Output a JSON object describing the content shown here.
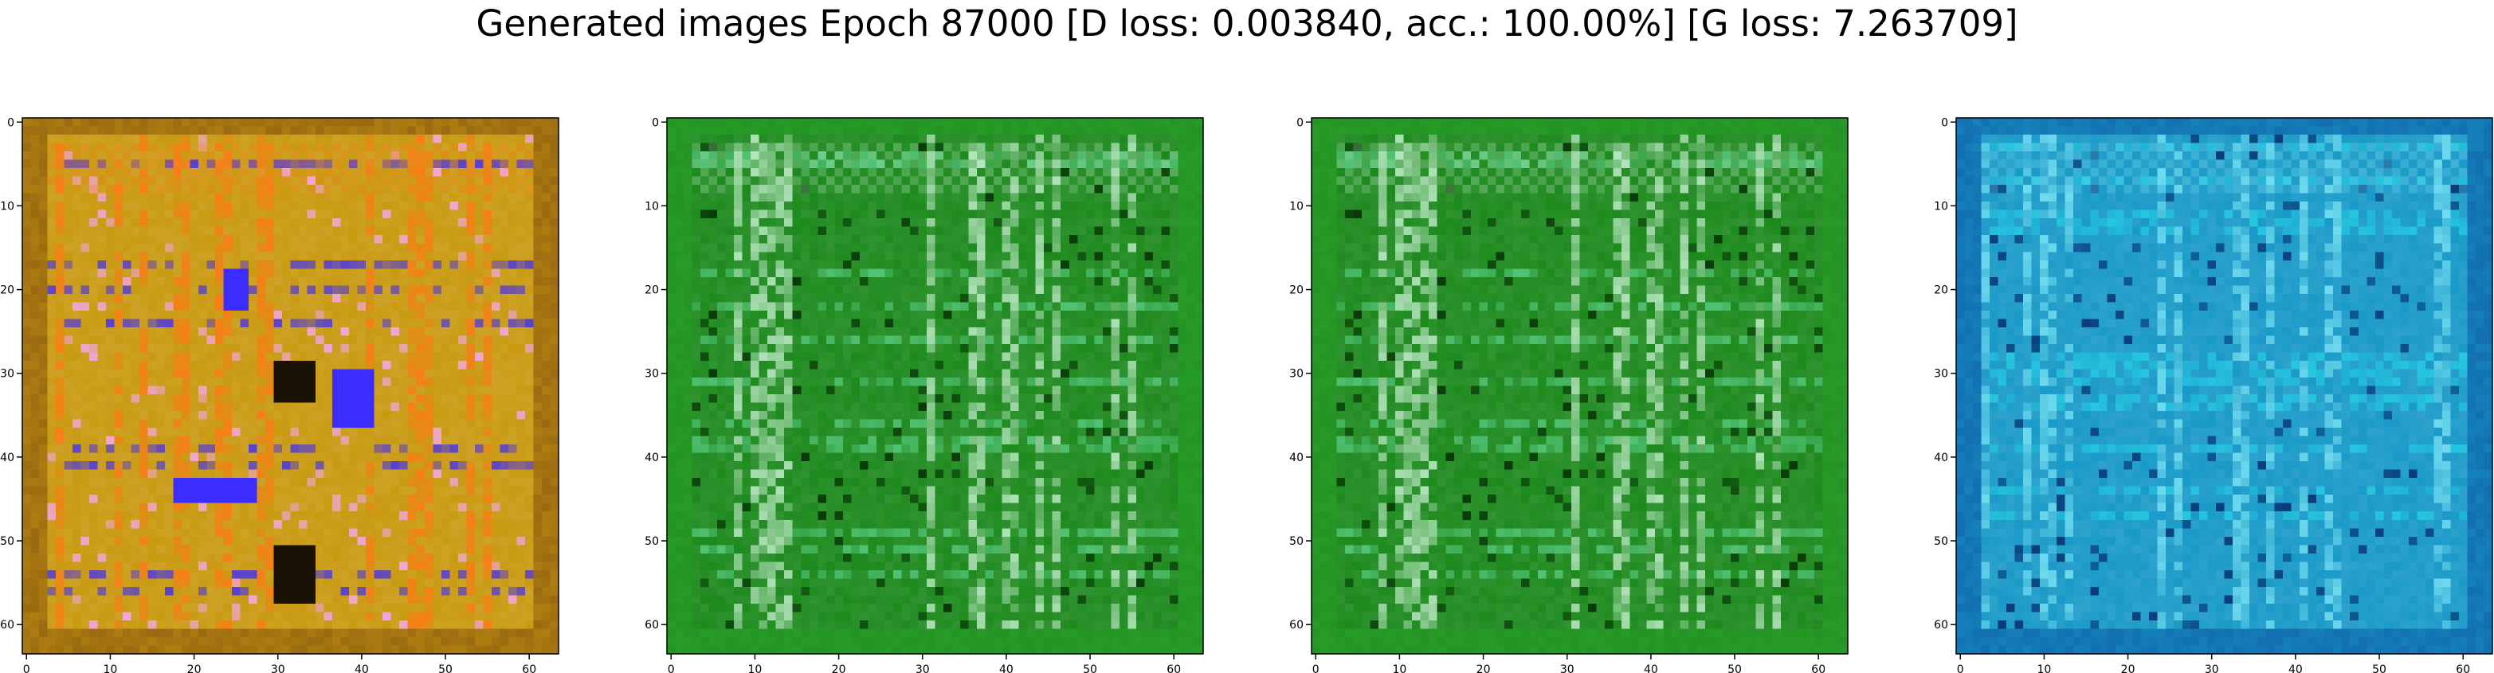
{
  "chart_data": {
    "type": "heatmap",
    "title": "Generated images Epoch 87000 [D loss: 0.003840, acc.: 100.00%] [G loss: 7.263709]",
    "subplots": [
      {
        "name": "",
        "image": "64x64 RGB generated image",
        "dominant_color": "#c99a12",
        "accent_colors": [
          "#ff7a1a",
          "#f2a6d6",
          "#3b2cff",
          "#1a1205",
          "#8b5a10"
        ],
        "xlim": [
          0,
          63
        ],
        "ylim": [
          63,
          0
        ],
        "xticks": [
          0,
          10,
          20,
          30,
          40,
          50,
          60
        ],
        "yticks": [
          0,
          10,
          20,
          30,
          40,
          50,
          60
        ],
        "xtick_labels": [
          "0",
          "10",
          "20",
          "30",
          "40",
          "50",
          "60"
        ],
        "ytick_labels": [
          "0",
          "10",
          "20",
          "30",
          "40",
          "50",
          "60"
        ]
      },
      {
        "name": "",
        "image": "64x64 RGB generated image",
        "dominant_color": "#1e8a1e",
        "accent_colors": [
          "#c8f0d2",
          "#0a3a0a",
          "#5fd08a",
          "#2aa02a"
        ],
        "xlim": [
          0,
          63
        ],
        "ylim": [
          63,
          0
        ],
        "xticks": [
          0,
          10,
          20,
          30,
          40,
          50,
          60
        ],
        "yticks": [
          0,
          10,
          20,
          30,
          40,
          50,
          60
        ],
        "xtick_labels": [
          "0",
          "10",
          "20",
          "30",
          "40",
          "50",
          "60"
        ],
        "ytick_labels": [
          "0",
          "10",
          "20",
          "30",
          "40",
          "50",
          "60"
        ]
      },
      {
        "name": "",
        "image": "64x64 RGB generated image",
        "dominant_color": "#1e8a1e",
        "accent_colors": [
          "#c8f0d2",
          "#0a3a0a",
          "#5fd08a",
          "#2aa02a"
        ],
        "xlim": [
          0,
          63
        ],
        "ylim": [
          63,
          0
        ],
        "xticks": [
          0,
          10,
          20,
          30,
          40,
          50,
          60
        ],
        "yticks": [
          0,
          10,
          20,
          30,
          40,
          50,
          60
        ],
        "xtick_labels": [
          "0",
          "10",
          "20",
          "30",
          "40",
          "50",
          "60"
        ],
        "ytick_labels": [
          "0",
          "10",
          "20",
          "30",
          "40",
          "50",
          "60"
        ]
      },
      {
        "name": "",
        "image": "64x64 RGB generated image",
        "dominant_color": "#1a9ac8",
        "accent_colors": [
          "#7fe6f5",
          "#0a3a78",
          "#2ad0e6",
          "#1060a8"
        ],
        "xlim": [
          0,
          63
        ],
        "ylim": [
          63,
          0
        ],
        "xticks": [
          0,
          10,
          20,
          30,
          40,
          50,
          60
        ],
        "yticks": [
          0,
          10,
          20,
          30,
          40,
          50,
          60
        ],
        "xtick_labels": [
          "0",
          "10",
          "20",
          "30",
          "40",
          "50",
          "60"
        ],
        "ytick_labels": [
          "0",
          "10",
          "20",
          "30",
          "40",
          "50",
          "60"
        ]
      }
    ]
  }
}
